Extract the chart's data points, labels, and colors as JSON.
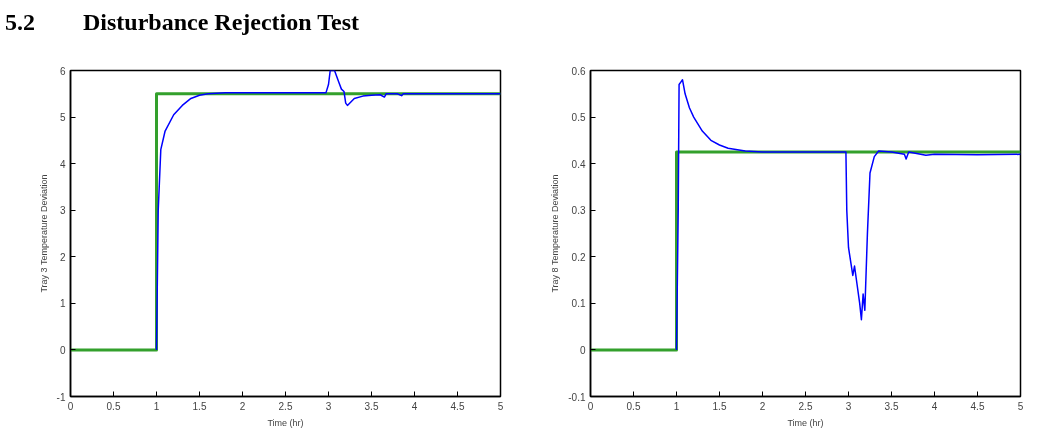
{
  "chart_data": [
    {
      "type": "line",
      "title": "5.2        Disturbance Rejection Test",
      "xlabel": "Time (hr)",
      "ylabel": "Tray 3 Temperature Deviation",
      "xlim": [
        0,
        5
      ],
      "ylim": [
        -1,
        6
      ],
      "xticks": [
        0,
        0.5,
        1,
        1.5,
        2,
        2.5,
        3,
        3.5,
        4,
        4.5,
        5
      ],
      "yticks": [
        -1,
        0,
        1,
        2,
        3,
        4,
        5,
        6
      ],
      "series": [
        {
          "color": "#0000ff",
          "x": [
            1.0,
            1.02,
            1.05,
            1.1,
            1.2,
            1.3,
            1.4,
            1.5,
            1.6,
            1.8,
            2.5,
            2.97,
            3.0,
            3.02,
            3.07,
            3.12,
            3.15,
            3.18,
            3.2,
            3.22,
            3.3,
            3.4,
            3.5,
            3.6,
            3.65,
            3.67,
            3.8,
            3.85,
            3.87,
            4,
            4.5,
            5
          ],
          "values": [
            0,
            3.0,
            4.3,
            4.7,
            5.05,
            5.25,
            5.4,
            5.47,
            5.5,
            5.52,
            5.52,
            5.52,
            5.7,
            6.0,
            6.0,
            5.75,
            5.6,
            5.55,
            5.3,
            5.25,
            5.4,
            5.45,
            5.47,
            5.48,
            5.43,
            5.5,
            5.5,
            5.46,
            5.5,
            5.5,
            5.5,
            5.5
          ]
        },
        {
          "color": "#33a02c",
          "x": [
            0,
            1,
            1,
            5
          ],
          "values": [
            0,
            0,
            5.5,
            5.5
          ]
        }
      ]
    },
    {
      "type": "line",
      "xlabel": "Time (hr)",
      "ylabel": "Tray 8 Temperature Deviation",
      "xlim": [
        0,
        5
      ],
      "ylim": [
        -0.1,
        0.6
      ],
      "xticks": [
        0,
        0.5,
        1,
        1.5,
        2,
        2.5,
        3,
        3.5,
        4,
        4.5,
        5
      ],
      "yticks": [
        -0.1,
        0,
        0.1,
        0.2,
        0.3,
        0.4,
        0.5,
        0.6
      ],
      "series": [
        {
          "color": "#0000ff",
          "x": [
            1.0,
            1.02,
            1.03,
            1.05,
            1.07,
            1.1,
            1.15,
            1.2,
            1.3,
            1.4,
            1.5,
            1.6,
            1.8,
            2,
            2.97,
            2.98,
            3.0,
            3.05,
            3.07,
            3.1,
            3.13,
            3.15,
            3.17,
            3.19,
            3.22,
            3.25,
            3.3,
            3.35,
            3.5,
            3.65,
            3.67,
            3.7,
            3.9,
            4,
            4.5,
            5
          ],
          "values": [
            0,
            0.3,
            0.57,
            0.575,
            0.58,
            0.55,
            0.52,
            0.5,
            0.47,
            0.45,
            0.44,
            0.433,
            0.427,
            0.425,
            0.425,
            0.3,
            0.22,
            0.16,
            0.18,
            0.14,
            0.1,
            0.065,
            0.12,
            0.085,
            0.25,
            0.38,
            0.415,
            0.427,
            0.425,
            0.42,
            0.41,
            0.425,
            0.418,
            0.42,
            0.419,
            0.42
          ]
        },
        {
          "color": "#33a02c",
          "x": [
            0,
            1,
            1,
            5
          ],
          "values": [
            0,
            0,
            0.425,
            0.425
          ]
        }
      ]
    }
  ]
}
